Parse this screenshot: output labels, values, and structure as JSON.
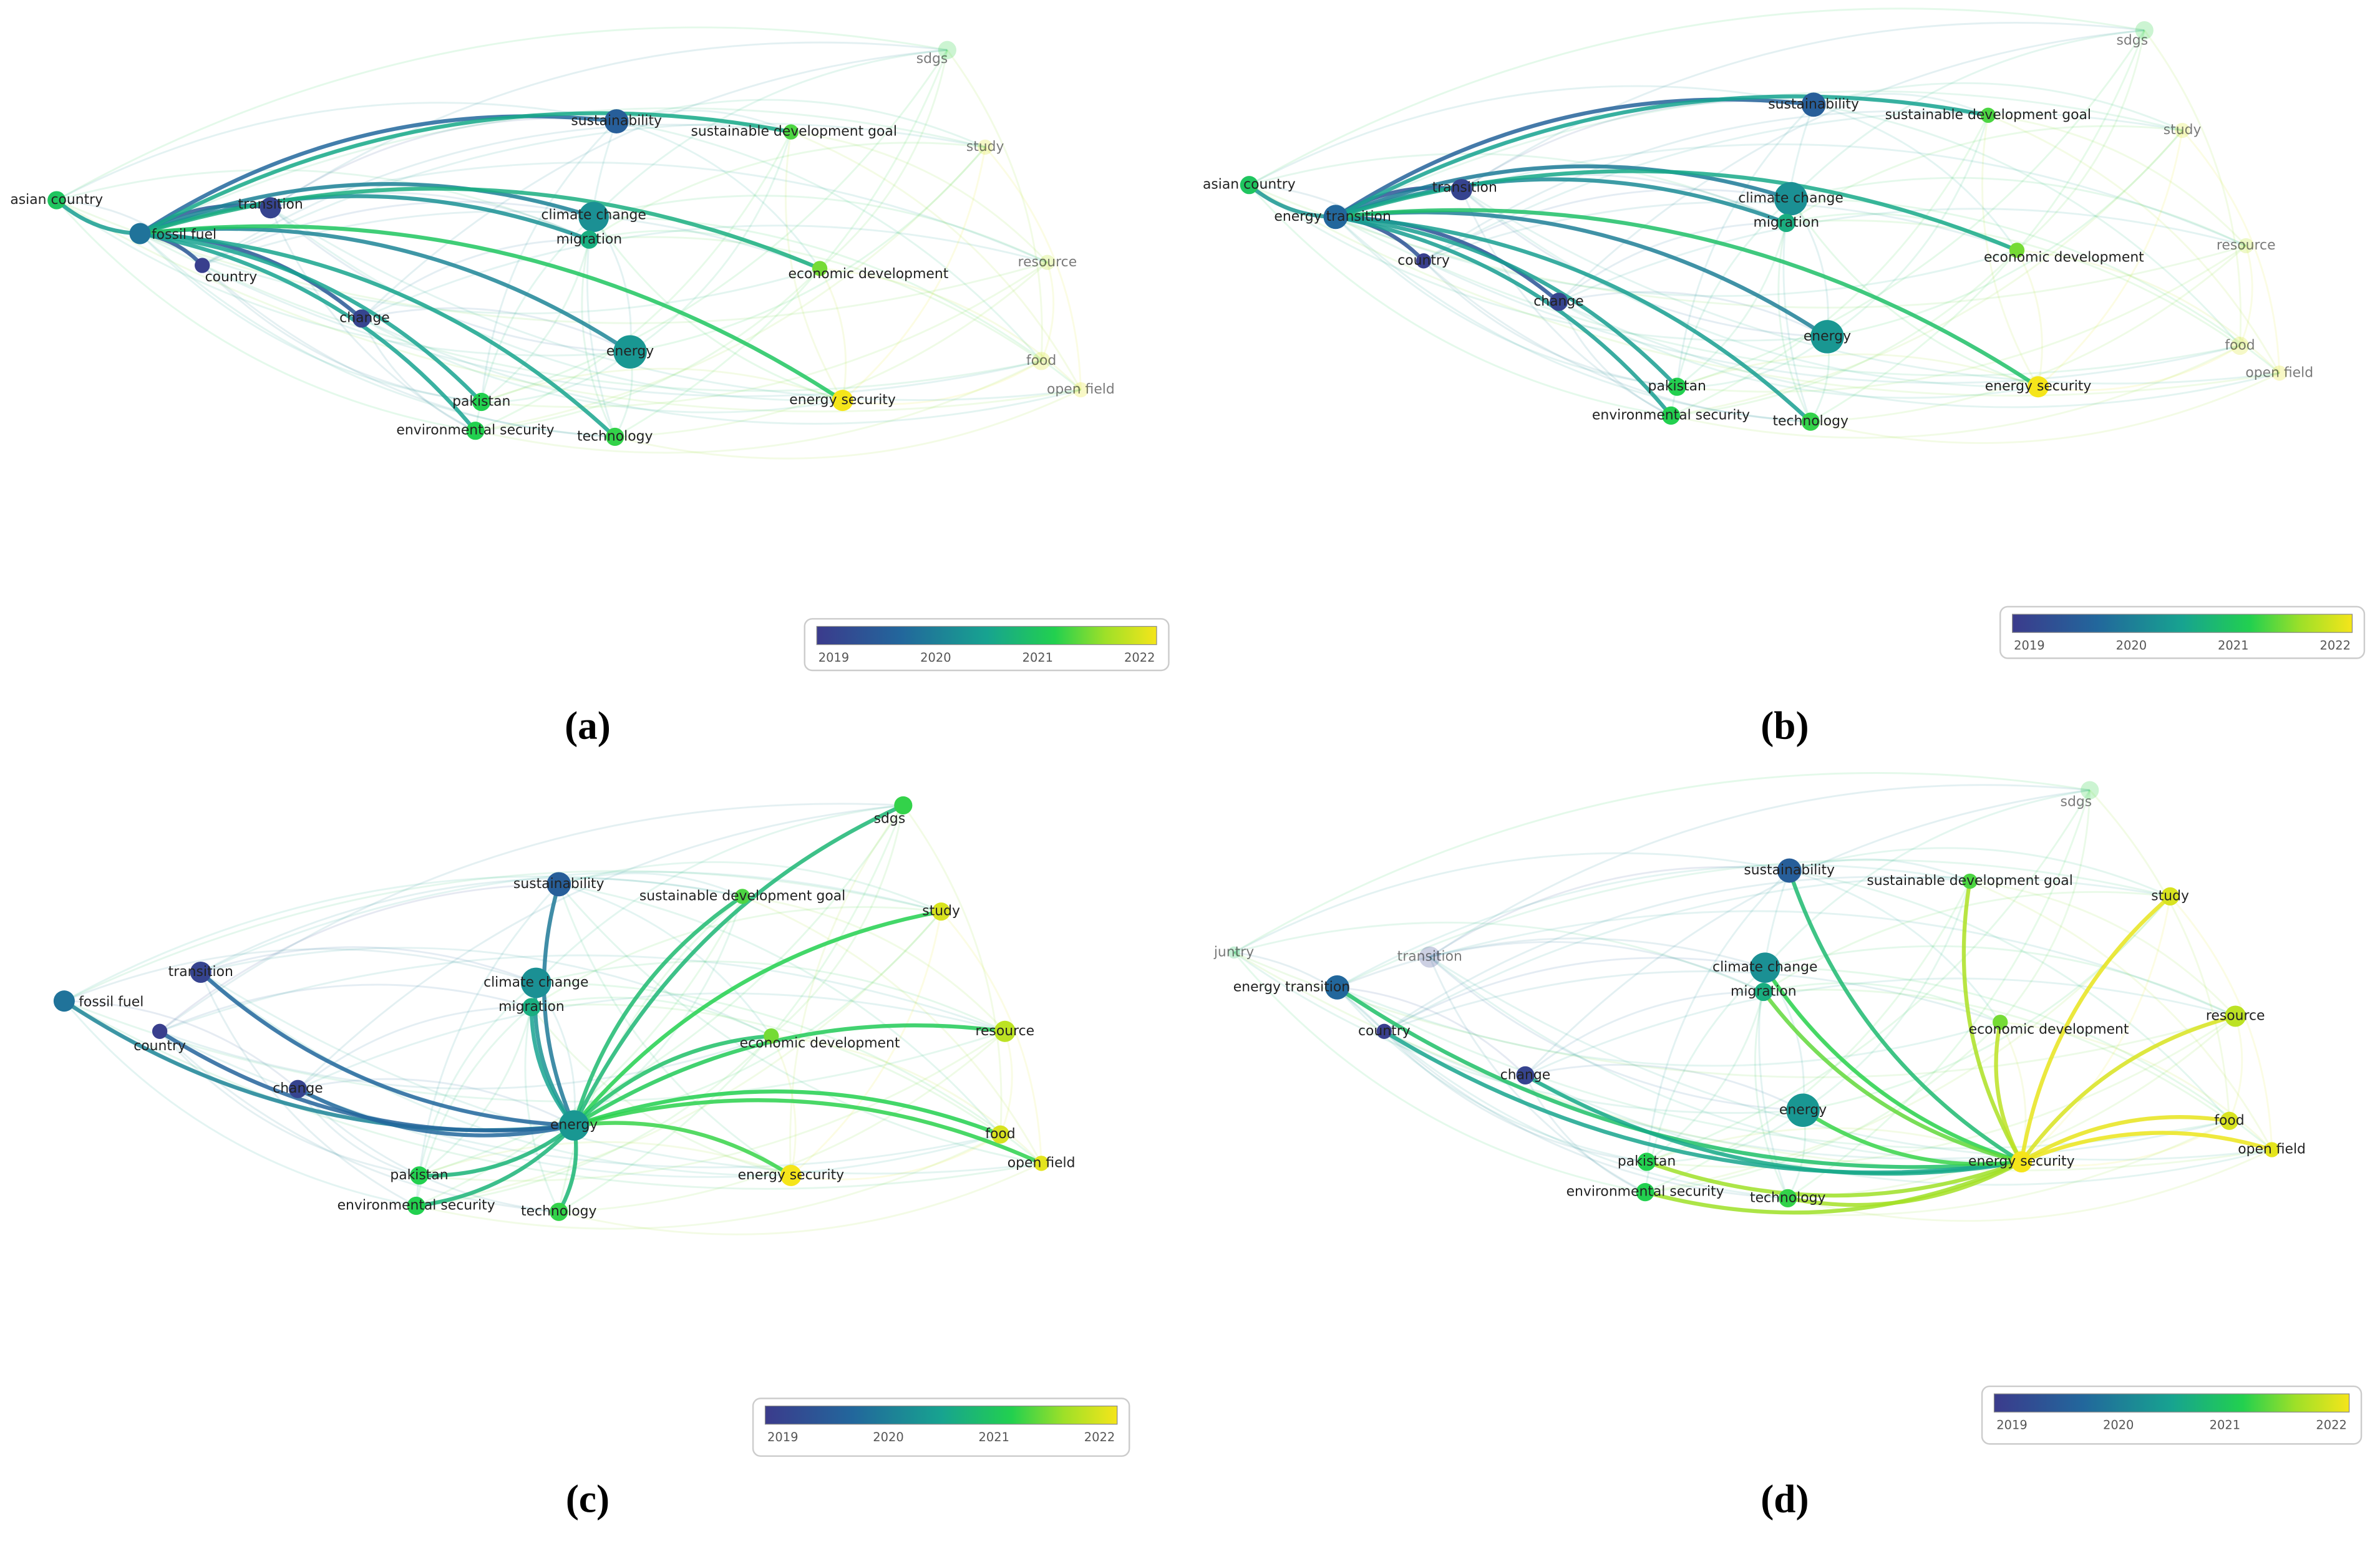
{
  "panels": [
    {
      "label": "(a)",
      "nodes": [
        "asian country",
        "fossil fuel",
        "transition",
        "country",
        "change",
        "sustainability",
        "climate change",
        "migration",
        "sustainable development goal",
        "sdgs",
        "study",
        "resource",
        "economic development",
        "energy",
        "food",
        "open field",
        "pakistan",
        "environmental security",
        "technology",
        "energy security"
      ],
      "legend_ticks": [
        "2019",
        "2020",
        "2021",
        "2022"
      ]
    },
    {
      "label": "(b)",
      "nodes": [
        "asian country",
        "energy transition",
        "transition",
        "country",
        "change",
        "sustainability",
        "climate change",
        "migration",
        "sustainable development goal",
        "sdgs",
        "study",
        "resource",
        "economic development",
        "energy",
        "food",
        "open field",
        "pakistan",
        "environmental security",
        "technology",
        "energy security"
      ],
      "legend_ticks": [
        "2019",
        "2020",
        "2021",
        "2022"
      ]
    },
    {
      "label": "(c)",
      "nodes": [
        "fossil fuel",
        "country",
        "transition",
        "change",
        "sustainability",
        "climate change",
        "migration",
        "sustainable development goal",
        "sdgs",
        "study",
        "resource",
        "economic development",
        "energy",
        "food",
        "open field",
        "pakistan",
        "environmental security",
        "technology",
        "energy security"
      ],
      "legend_ticks": [
        "2019",
        "2020",
        "2021",
        "2022"
      ]
    },
    {
      "label": "(d)",
      "nodes": [
        "juntry",
        "energy transition",
        "transition",
        "country",
        "change",
        "sustainability",
        "climate change",
        "migration",
        "sustainable development goal",
        "sdgs",
        "study",
        "resource",
        "economic development",
        "energy",
        "food",
        "open field",
        "pakistan",
        "environmental security",
        "technology",
        "energy security"
      ],
      "legend_ticks": [
        "2019",
        "2020",
        "2021",
        "2022"
      ]
    }
  ]
}
